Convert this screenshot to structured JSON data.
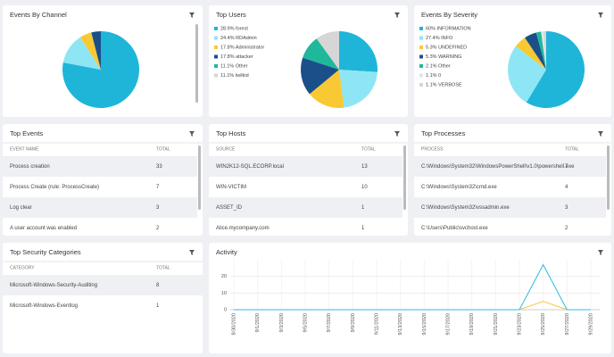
{
  "pies": [
    {
      "title": "Events By Channel",
      "values": [
        78,
        13,
        5,
        4
      ],
      "colors": [
        "#1fb5d9",
        "#8ee6f5",
        "#f9c933",
        "#1b4f8a"
      ]
    },
    {
      "title": "Top Users",
      "values": [
        28.9,
        24.4,
        17.8,
        17.8,
        11.1,
        11.1
      ],
      "labels": [
        "28.9% forest",
        "24.4% RDAdmin",
        "17.8% Administrator",
        "17.8% attacker",
        "11.1% Other",
        "11.1% twilkid"
      ],
      "colors": [
        "#1fb5d9",
        "#8ee6f5",
        "#f9c933",
        "#1b4f8a",
        "#1fb89b",
        "#d6d6d6"
      ]
    },
    {
      "title": "Events By Severity",
      "values": [
        60,
        27.4,
        5.3,
        5.3,
        2.1,
        1.1,
        1.1
      ],
      "labels": [
        "60% INFORMATION",
        "27.4% INFO",
        "5.3% UNDEFINED",
        "5.3% WARNING",
        "2.1% Other",
        "1.1% 0",
        "1.1% VERBOSE"
      ],
      "colors": [
        "#1fb5d9",
        "#8ee6f5",
        "#f9c933",
        "#1b4f8a",
        "#1fb89b",
        "#e4e4e4",
        "#d6d6d6"
      ]
    }
  ],
  "tables": [
    {
      "title": "Top Events",
      "columns": [
        "EVENT NAME",
        "TOTAL"
      ],
      "rows": [
        [
          "Process creation",
          33
        ],
        [
          "Process Create (rule: ProcessCreate)",
          7
        ],
        [
          "Log clear",
          3
        ],
        [
          "A user account was enabled",
          2
        ]
      ]
    },
    {
      "title": "Top Hosts",
      "columns": [
        "SOURCE",
        "TOTAL"
      ],
      "rows": [
        [
          "WIN2K12-SQL.ECORP.local",
          13
        ],
        [
          "WIN-VICTIM",
          10
        ],
        [
          "ASSET_ID",
          1
        ],
        [
          "Alice.mycompany.com",
          1
        ]
      ]
    },
    {
      "title": "Top Processes",
      "columns": [
        "PROCESS",
        "TOTAL"
      ],
      "rows": [
        [
          "C:\\Windows\\System32\\WindowsPowerShell\\v1.0\\powershell.exe",
          7
        ],
        [
          "C:\\Windows\\System32\\cmd.exe",
          4
        ],
        [
          "C:\\Windows\\System32\\vssadmin.exe",
          3
        ],
        [
          "C:\\Users\\Public\\svchost.exe",
          2
        ]
      ]
    },
    {
      "title": "Top Security Categories",
      "columns": [
        "CATEGORY",
        "TOTAL"
      ],
      "rows": [
        [
          "Microsoft-Windows-Security-Auditing",
          8
        ],
        [
          "Microsoft-Windows-Eventlog",
          1
        ]
      ]
    }
  ],
  "activity": {
    "title": "Activity",
    "type": "line",
    "x": [
      "8/30/2020",
      "9/1/2020",
      "9/3/2020",
      "9/5/2020",
      "9/7/2020",
      "9/9/2020",
      "9/11/2020",
      "9/13/2020",
      "9/15/2020",
      "9/17/2020",
      "9/19/2020",
      "9/21/2020",
      "9/23/2020",
      "9/25/2020",
      "9/27/2020",
      "9/29/2020"
    ],
    "series": [
      {
        "color": "#2bbde0",
        "values": [
          0,
          0,
          0,
          0,
          0,
          0,
          0,
          0,
          0,
          0,
          0,
          0,
          0,
          27,
          0,
          0
        ]
      },
      {
        "color": "#f5c842",
        "values": [
          0,
          0,
          0,
          0,
          0,
          0,
          0,
          0,
          0,
          0,
          0,
          0,
          0,
          5,
          0,
          0
        ]
      }
    ],
    "ylim": [
      0,
      30
    ],
    "yticks": [
      0,
      10,
      20
    ]
  }
}
